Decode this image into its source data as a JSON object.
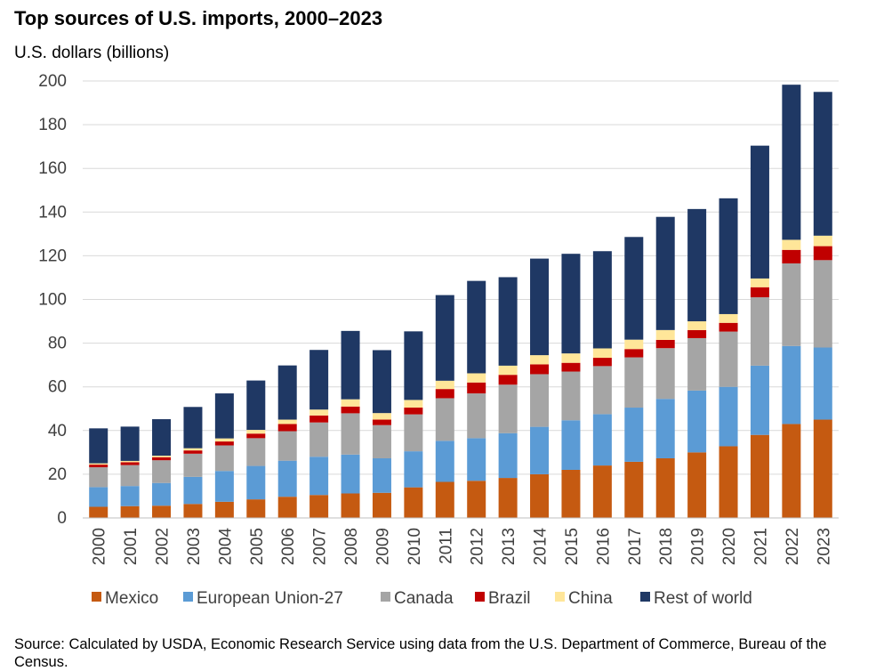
{
  "header": {
    "title": "Top sources of U.S. imports, 2000–2023",
    "unit_label": "U.S. dollars (billions)"
  },
  "footer": {
    "source": "Source: Calculated by USDA, Economic Research Service using data from the U.S. Department of Commerce, Bureau of the Census."
  },
  "chart_data": {
    "type": "bar",
    "stacked": true,
    "title": "Top sources of U.S. imports, 2000–2023",
    "ylabel": "U.S. dollars (billions)",
    "xlabel": "",
    "ylim": [
      0,
      200
    ],
    "yticks": [
      0,
      20,
      40,
      60,
      80,
      100,
      120,
      140,
      160,
      180,
      200
    ],
    "grid": true,
    "legend_position": "bottom",
    "categories": [
      "2000",
      "2001",
      "2002",
      "2003",
      "2004",
      "2005",
      "2006",
      "2007",
      "2008",
      "2009",
      "2010",
      "2011",
      "2012",
      "2013",
      "2014",
      "2015",
      "2016",
      "2017",
      "2018",
      "2019",
      "2020",
      "2021",
      "2022",
      "2023"
    ],
    "series": [
      {
        "name": "Mexico",
        "color": "#C55A11",
        "values": [
          5.1,
          5.4,
          5.6,
          6.4,
          7.4,
          8.5,
          9.7,
          10.5,
          11.2,
          11.5,
          14.0,
          16.5,
          17.0,
          18.3,
          20.0,
          22.0,
          24.0,
          25.7,
          27.3,
          30.0,
          32.8,
          38.0,
          43.0,
          45.0
        ]
      },
      {
        "name": "European Union-27",
        "color": "#5B9BD5",
        "values": [
          9.0,
          9.2,
          10.4,
          12.4,
          14.1,
          15.3,
          16.5,
          17.5,
          17.8,
          15.8,
          16.5,
          18.8,
          19.5,
          20.5,
          21.7,
          22.7,
          23.5,
          24.8,
          27.2,
          28.3,
          27.2,
          31.7,
          35.7,
          33.0
        ]
      },
      {
        "name": "Canada",
        "color": "#A5A5A5",
        "values": [
          9.1,
          9.6,
          10.4,
          10.6,
          11.7,
          12.7,
          13.5,
          15.7,
          18.9,
          15.2,
          16.9,
          19.5,
          20.5,
          22.2,
          24.1,
          22.3,
          22.0,
          23.0,
          23.2,
          24.0,
          25.3,
          31.3,
          37.8,
          40.0
        ]
      },
      {
        "name": "Brazil",
        "color": "#C00000",
        "values": [
          1.2,
          1.3,
          1.4,
          1.5,
          1.8,
          2.1,
          3.3,
          3.2,
          3.1,
          2.5,
          3.1,
          4.2,
          5.0,
          4.5,
          4.5,
          4.0,
          3.8,
          3.8,
          3.8,
          3.7,
          4.0,
          4.6,
          6.2,
          6.4
        ]
      },
      {
        "name": "China",
        "color": "#FFE699",
        "values": [
          0.6,
          0.6,
          0.7,
          1.0,
          1.4,
          1.7,
          2.0,
          2.7,
          3.3,
          3.0,
          3.5,
          3.8,
          4.2,
          4.2,
          4.2,
          4.3,
          4.3,
          4.3,
          4.5,
          4.0,
          4.0,
          4.0,
          4.6,
          4.8
        ]
      },
      {
        "name": "Rest of world",
        "color": "#1F3864",
        "values": [
          16.0,
          15.7,
          16.7,
          18.9,
          20.6,
          22.6,
          24.8,
          27.3,
          31.3,
          28.8,
          31.4,
          39.2,
          42.3,
          40.5,
          44.2,
          45.6,
          44.5,
          47.0,
          51.8,
          51.4,
          53.0,
          60.8,
          71.0,
          65.8
        ]
      }
    ]
  }
}
